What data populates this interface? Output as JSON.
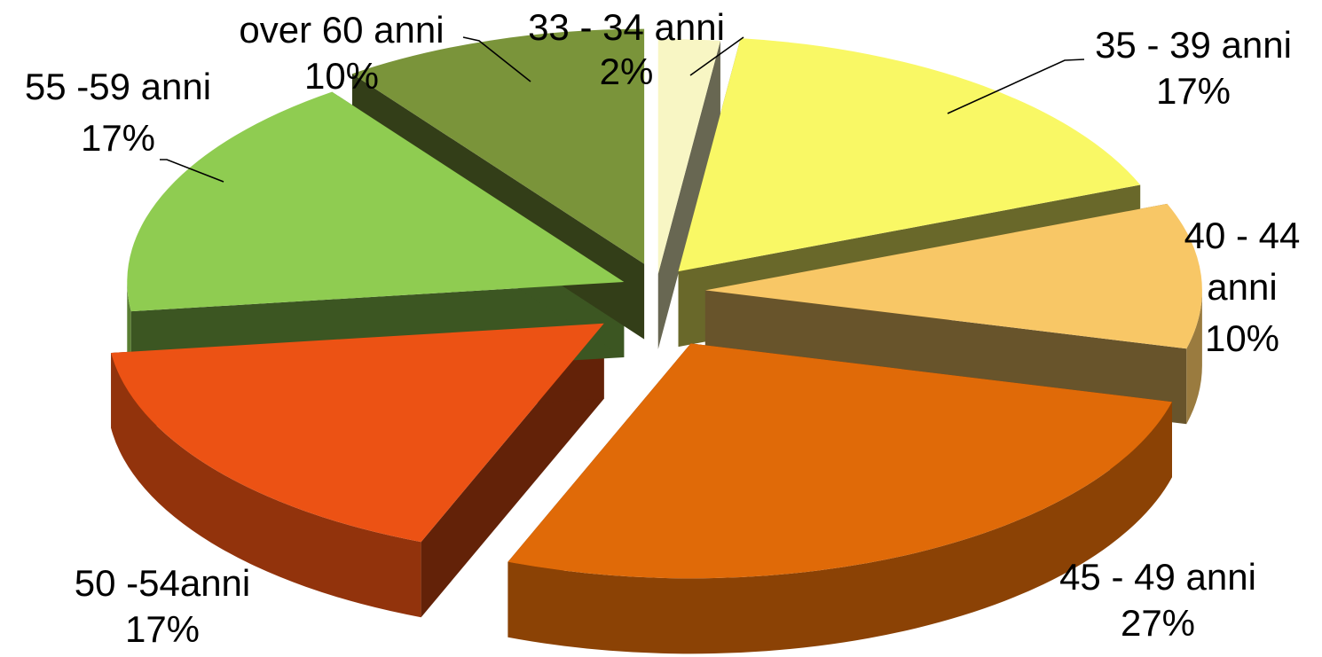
{
  "chart_data": {
    "type": "pie",
    "variant": "3d-exploded",
    "title": "",
    "slices": [
      {
        "label": "33 - 34 anni",
        "percent_label": "2%",
        "value": 2,
        "color": "#F8F6C4"
      },
      {
        "label": "35 - 39 anni",
        "percent_label": "17%",
        "value": 17,
        "color": "#F9F865"
      },
      {
        "label": "40 - 44 anni",
        "percent_label": "10%",
        "value": 10,
        "color": "#F8C766"
      },
      {
        "label": "45 - 49 anni",
        "percent_label": "27%",
        "value": 27,
        "color": "#E06A08"
      },
      {
        "label": "50 -54anni",
        "percent_label": "17%",
        "value": 17,
        "color": "#EC5214"
      },
      {
        "label": "55 -59 anni",
        "percent_label": "17%",
        "value": 17,
        "color": "#8FCC51"
      },
      {
        "label": "over 60 anni",
        "percent_label": "10%",
        "value": 10,
        "color": "#7A943A"
      }
    ],
    "legend": "none",
    "data_labels": "outside with leader lines"
  }
}
